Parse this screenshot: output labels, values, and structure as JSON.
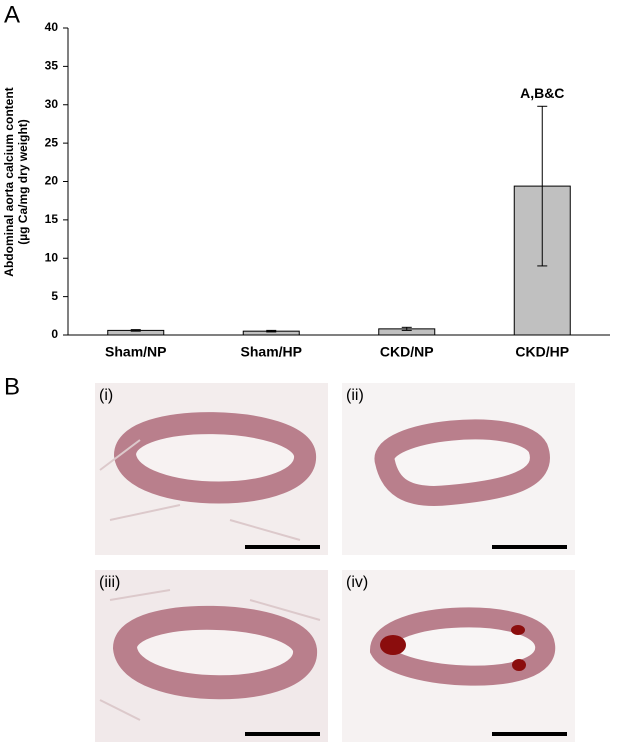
{
  "panel_labels": [
    "A",
    "B"
  ],
  "image_labels": [
    "(i)",
    "(ii)",
    "(iii)",
    "(iv)"
  ],
  "chart_data": {
    "type": "bar",
    "ylabel": [
      "Abdominal aorta calcium content",
      "(µg Ca/mg dry weight)"
    ],
    "categories": [
      "Sham/NP",
      "Sham/HP",
      "CKD/NP",
      "CKD/HP"
    ],
    "values": [
      0.6,
      0.5,
      0.8,
      19.4
    ],
    "errors": [
      0.1,
      0.1,
      0.2,
      10.4
    ],
    "annotations": [
      null,
      null,
      null,
      "A,B&C"
    ],
    "color": "#c0c0c0",
    "ylim": [
      0,
      40
    ],
    "yticks": [
      0,
      5,
      10,
      15,
      20,
      25,
      30,
      35,
      40
    ],
    "grid": false
  }
}
